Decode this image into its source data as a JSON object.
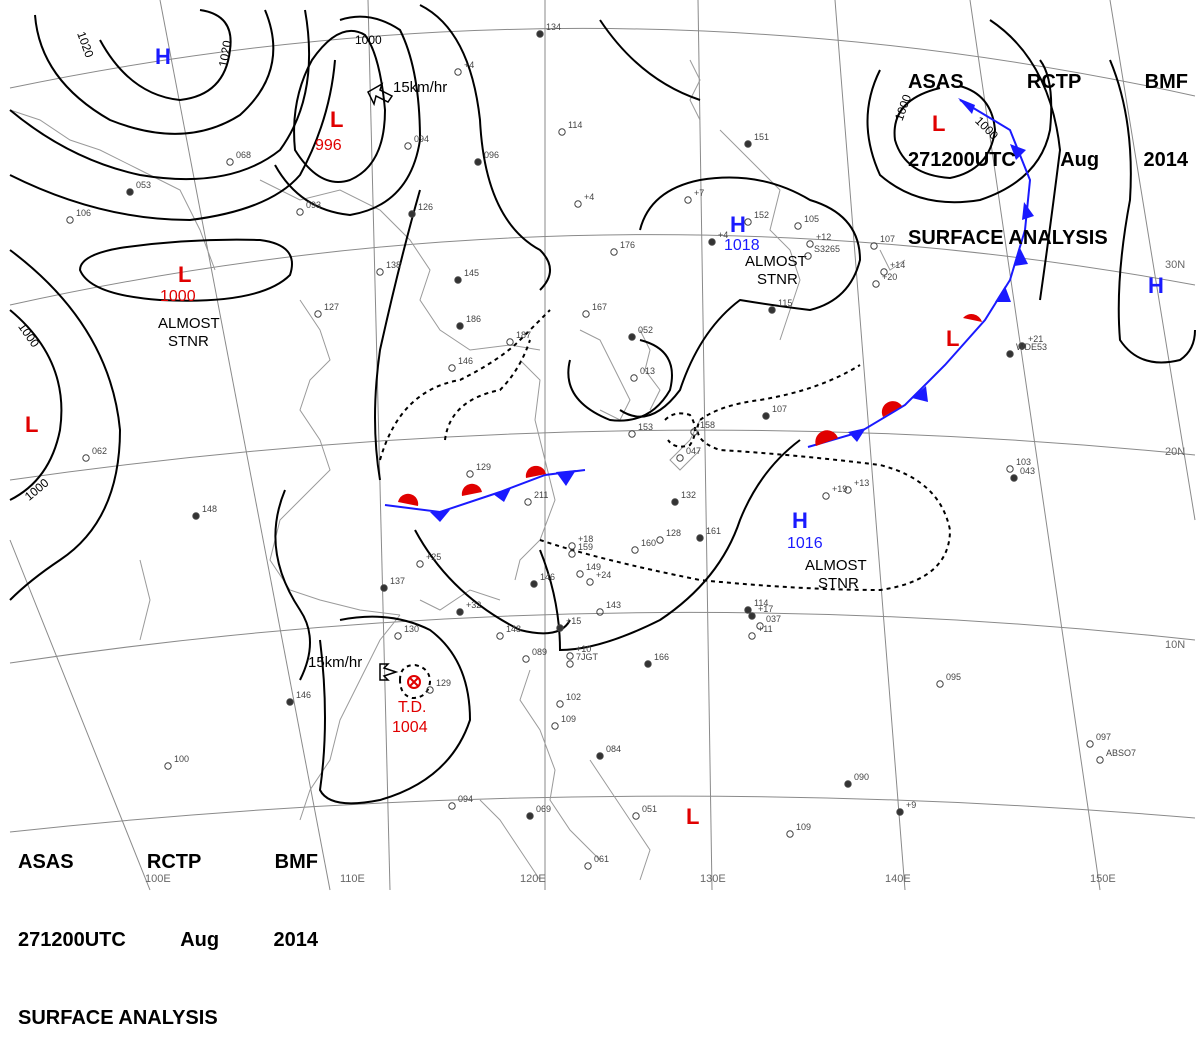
{
  "header": {
    "line1": [
      "ASAS",
      "RCTP",
      "BMF"
    ],
    "line2": [
      "271200UTC",
      "Aug",
      "2014"
    ],
    "line3": "SURFACE ANALYSIS"
  },
  "colors": {
    "isobar": "#000000",
    "high": "#1a1aff",
    "low": "#e00000",
    "front_cold": "#1a1aff",
    "front_warm": "#e00000",
    "grid": "#808080"
  },
  "pressure_systems": [
    {
      "type": "H",
      "label": "H",
      "value": ""
    },
    {
      "type": "L",
      "label": "L",
      "value": "996"
    },
    {
      "type": "L",
      "label": "L",
      "value": "1000"
    },
    {
      "type": "L",
      "label": "L",
      "value": ""
    },
    {
      "type": "H",
      "label": "H",
      "value": "1018"
    },
    {
      "type": "L",
      "label": "L",
      "value": ""
    },
    {
      "type": "H",
      "label": "H",
      "value": ""
    },
    {
      "type": "L",
      "label": "L",
      "value": ""
    },
    {
      "type": "H",
      "label": "H",
      "value": "1016"
    },
    {
      "type": "L",
      "label": "L",
      "value": ""
    }
  ],
  "tropical_depression": {
    "label": "T.D.",
    "value": "1004",
    "motion": "15km/hr"
  },
  "low_motion": "15km/hr",
  "stationary_notes": [
    {
      "line1": "ALMOST",
      "line2": "STNR"
    },
    {
      "line1": "ALMOST",
      "line2": "STNR"
    },
    {
      "line1": "ALMOST",
      "line2": "STNR"
    }
  ],
  "isobar_labels": [
    "1020",
    "1020",
    "1000",
    "1000",
    "1000",
    "1000",
    "1000"
  ],
  "lat_labels": [
    "30N",
    "20N",
    "10N"
  ],
  "lon_labels": [
    "100E",
    "110E",
    "120E",
    "130E",
    "140E",
    "150E"
  ],
  "station_data": [
    "134",
    "+4",
    "094",
    "096",
    "114",
    "+4",
    "151",
    "+7",
    "152",
    "+4",
    "176",
    "167",
    "186",
    "187",
    "146",
    "145",
    "138",
    "127",
    "126",
    "093",
    "068",
    "053",
    "106",
    "062",
    "148",
    "129",
    "211",
    "052",
    "013",
    "047",
    "132",
    "128",
    "160",
    "161",
    "159",
    "149",
    "146",
    "143",
    "148",
    "137",
    "130",
    "129",
    "146",
    "100",
    "094",
    "069",
    "061",
    "051",
    "084",
    "102",
    "109",
    "114",
    "095",
    "097",
    "090",
    "109",
    "103",
    "115",
    "105",
    "107",
    "107",
    "158",
    "153",
    "166",
    "089",
    "037",
    "043",
    "+13",
    "+14",
    "+15",
    "+12",
    "+20",
    "+21",
    "+10",
    "+11",
    "+9",
    "+19",
    "+18",
    "+32",
    "+25",
    "+24",
    "+17",
    "ABSO7",
    "S3265",
    "WDE53",
    "7JGT"
  ]
}
